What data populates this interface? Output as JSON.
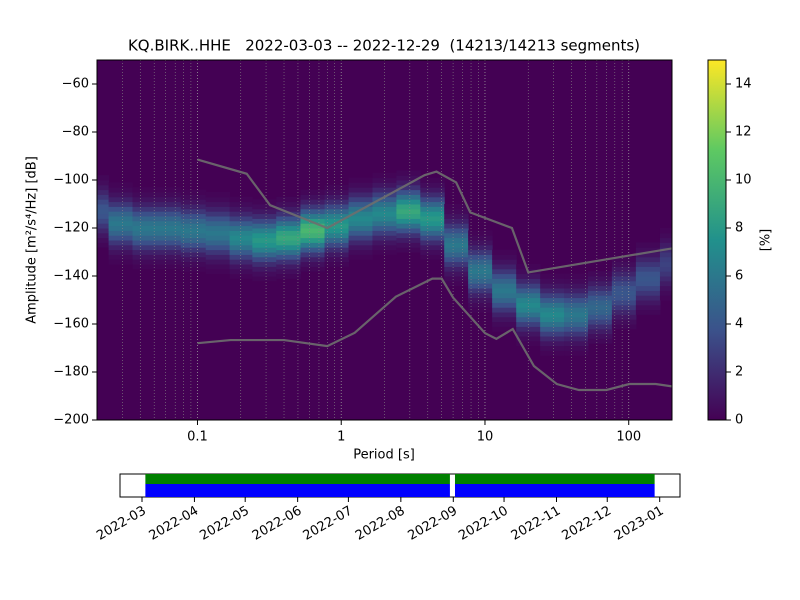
{
  "chart_data": {
    "type": "ppsd",
    "title": "KQ.BIRK..HHE   2022-03-03 -- 2022-12-29  (14213/14213 segments)",
    "x_label": "Period [s]",
    "y_label": "Amplitude [m²/s⁴/Hz] [dB]",
    "colorbar_label": "[%]",
    "log_x": true,
    "grid": true,
    "xlim": [
      0.02,
      200
    ],
    "ylim": [
      -200,
      -50
    ],
    "xticks": [
      0.1,
      1,
      10,
      100
    ],
    "yticks": [
      {
        "value": -200,
        "label": "−200"
      },
      {
        "value": -180,
        "label": "−180"
      },
      {
        "value": -160,
        "label": "−160"
      },
      {
        "value": -140,
        "label": "−140"
      },
      {
        "value": -120,
        "label": "−120"
      },
      {
        "value": -100,
        "label": "−100"
      },
      {
        "value": -80,
        "label": "−80"
      },
      {
        "value": -60,
        "label": "−60"
      }
    ],
    "clim": [
      0,
      15
    ],
    "cticks": [
      0,
      2,
      4,
      6,
      8,
      10,
      12,
      14
    ],
    "psd": {
      "x": [
        0.02,
        0.029,
        0.043,
        0.063,
        0.093,
        0.14,
        0.2,
        0.29,
        0.43,
        0.63,
        0.93,
        1.36,
        2,
        2.93,
        4.3,
        6.3,
        9.25,
        13.6,
        20,
        29.3,
        43,
        63,
        92.5,
        136,
        200
      ],
      "values": [
        -113,
        -118,
        -120,
        -120,
        -121,
        -122,
        -124,
        -125,
        -124,
        -121,
        -119,
        -116,
        -114,
        -113,
        -116,
        -127,
        -138,
        -146,
        -152,
        -156,
        -156,
        -153,
        -147,
        -141,
        -135
      ],
      "peak": [
        4,
        6,
        6,
        6,
        6,
        6,
        7,
        8,
        9,
        10,
        8,
        7,
        7,
        9,
        8,
        6,
        6,
        6,
        7,
        7,
        6,
        5,
        4,
        4,
        3
      ]
    },
    "series": [
      {
        "color": "#6e6e6e",
        "x": [
          0.1,
          0.22,
          0.32,
          0.8,
          3.8,
          4.6,
          6.3,
          7.9,
          15.4,
          20,
          200
        ],
        "values": [
          -91.5,
          -97.4,
          -110.5,
          -120,
          -98,
          -96.5,
          -101,
          -113.5,
          -120,
          -138.5,
          -128.5
        ]
      },
      {
        "color": "#6e6e6e",
        "x": [
          0.1,
          0.17,
          0.4,
          0.8,
          1.24,
          2.4,
          4.3,
          5,
          6,
          10,
          12,
          15.6,
          21.9,
          31.6,
          45,
          70,
          101,
          154,
          200
        ],
        "values": [
          -168,
          -166.7,
          -166.7,
          -169.2,
          -163.7,
          -148.6,
          -141.1,
          -141.1,
          -149,
          -163.8,
          -166.2,
          -162.1,
          -177.5,
          -185,
          -187.5,
          -187.5,
          -185,
          -185,
          -186
        ]
      }
    ],
    "timeline": {
      "xlim": [
        "2022-02-16",
        "2023-01-13"
      ],
      "xticks": [
        "2022-03",
        "2022-04",
        "2022-05",
        "2022-06",
        "2022-07",
        "2022-08",
        "2022-09",
        "2022-10",
        "2022-11",
        "2022-12",
        "2023-01"
      ],
      "coverage": [
        {
          "start": "2022-03-03",
          "end": "2022-08-30"
        },
        {
          "start": "2022-09-02",
          "end": "2022-12-29"
        }
      ],
      "colors": [
        "#008000",
        "#0000ff"
      ]
    }
  }
}
